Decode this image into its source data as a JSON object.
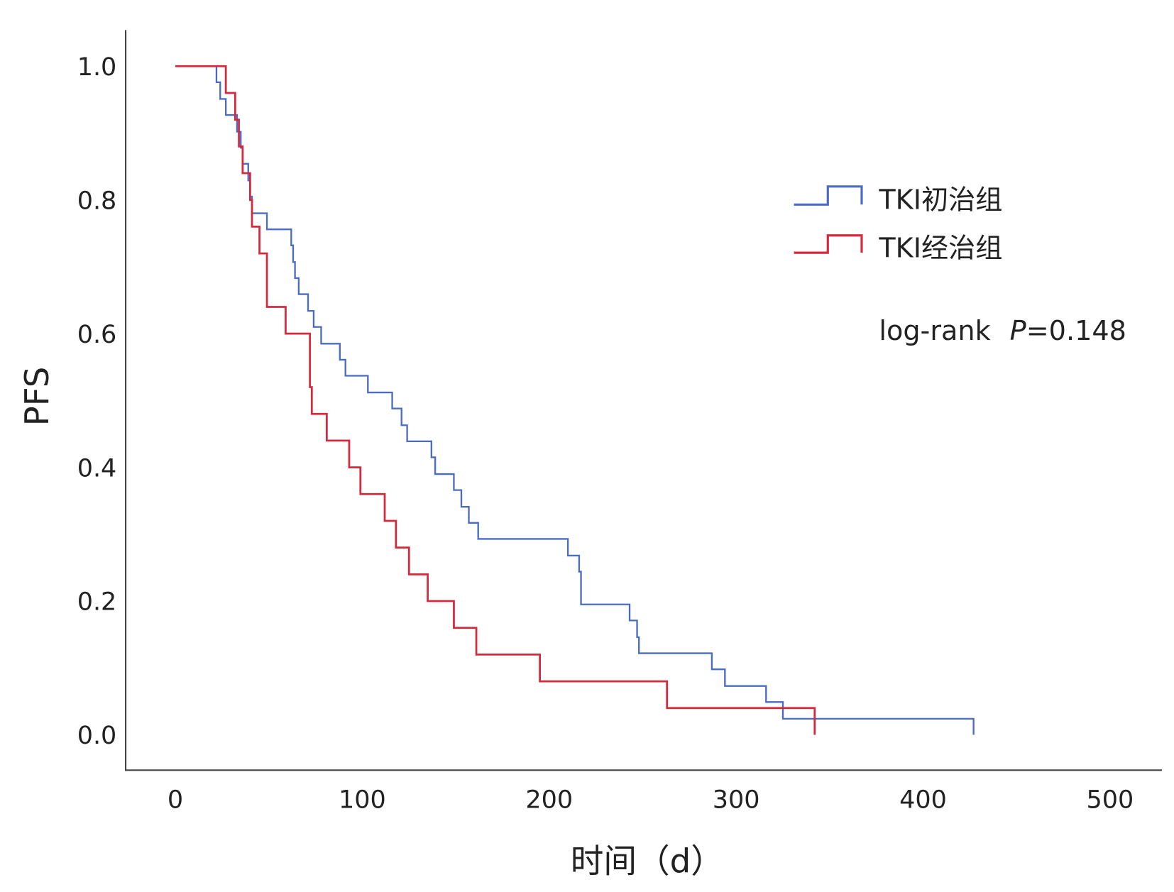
{
  "chart_data": {
    "type": "line",
    "subtype": "kaplan-meier step",
    "xlabel": "时间（d）",
    "ylabel": "PFS",
    "xlim": [
      0,
      500
    ],
    "ylim": [
      0,
      1.0
    ],
    "xticks": [
      "0",
      "100",
      "200",
      "300",
      "400",
      "500"
    ],
    "yticks": [
      "0.0",
      "0.2",
      "0.4",
      "0.6",
      "0.8",
      "1.0"
    ],
    "legend_position": "top-right",
    "annotation": {
      "prefix": "log-rank ",
      "p_label": "P",
      "p_value": "=0.148"
    },
    "series": [
      {
        "name": "TKI初治组",
        "color": "#4a6cc4",
        "times": [
          0,
          22,
          24,
          27,
          33,
          35,
          36,
          39,
          40,
          41,
          49,
          62,
          63,
          64,
          66,
          71,
          74,
          78,
          88,
          91,
          103,
          116,
          121,
          124,
          137,
          139,
          149,
          153,
          157,
          162,
          210,
          216,
          217,
          243,
          247,
          248,
          287,
          294,
          316,
          325,
          427
        ],
        "survival": [
          1.0,
          0.976,
          0.951,
          0.927,
          0.902,
          0.878,
          0.854,
          0.829,
          0.805,
          0.78,
          0.756,
          0.732,
          0.707,
          0.683,
          0.659,
          0.634,
          0.61,
          0.585,
          0.561,
          0.537,
          0.512,
          0.488,
          0.463,
          0.439,
          0.415,
          0.39,
          0.366,
          0.341,
          0.317,
          0.293,
          0.268,
          0.244,
          0.195,
          0.171,
          0.146,
          0.122,
          0.098,
          0.073,
          0.049,
          0.024,
          0.0
        ]
      },
      {
        "name": "TKI经治组",
        "color": "#d42a3c",
        "times": [
          0,
          27,
          32,
          34,
          36,
          40,
          41,
          45,
          49,
          59,
          72,
          73,
          81,
          93,
          99,
          112,
          118,
          125,
          135,
          149,
          161,
          195,
          263,
          342
        ],
        "survival": [
          1.0,
          0.96,
          0.92,
          0.88,
          0.84,
          0.8,
          0.76,
          0.72,
          0.64,
          0.6,
          0.52,
          0.48,
          0.44,
          0.4,
          0.36,
          0.32,
          0.28,
          0.24,
          0.2,
          0.16,
          0.12,
          0.08,
          0.04,
          0.0
        ]
      }
    ]
  }
}
